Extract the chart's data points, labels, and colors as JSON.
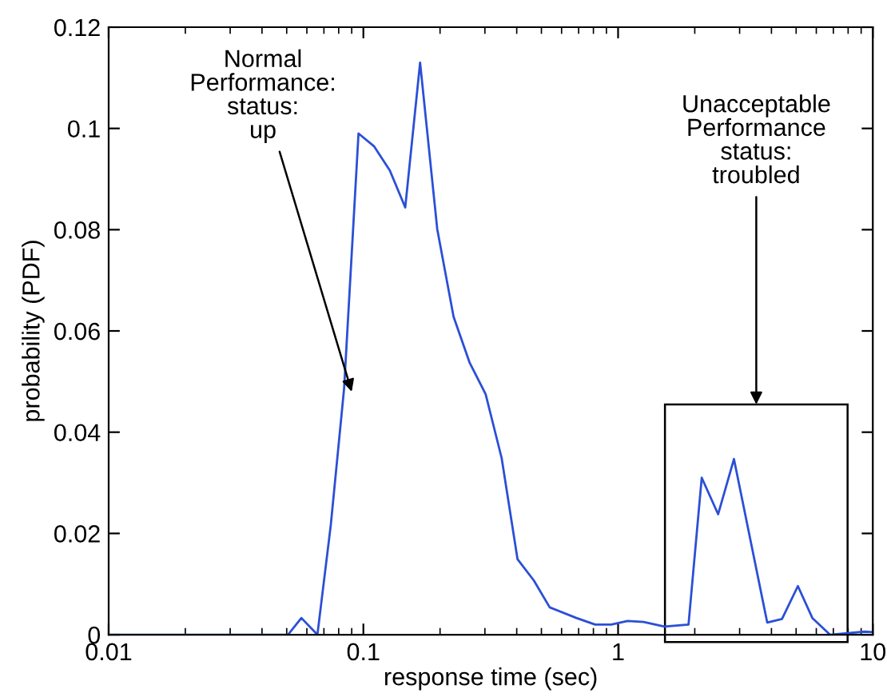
{
  "chart_data": {
    "type": "line",
    "xlabel": "response time (sec)",
    "ylabel": "probability (PDF)",
    "log": "x",
    "x": [
      0.01,
      0.0506,
      0.0571,
      0.066,
      0.0745,
      0.084,
      0.0957,
      0.11,
      0.127,
      0.146,
      0.167,
      0.195,
      0.226,
      0.261,
      0.302,
      0.349,
      0.403,
      0.467,
      0.539,
      0.686,
      0.813,
      0.94,
      1.09,
      1.26,
      1.52,
      1.89,
      2.13,
      2.47,
      2.85,
      3.85,
      4.4,
      5.08,
      5.79,
      6.79,
      9.3,
      10
    ],
    "series": [
      {
        "color": "#2b4fd6",
        "values": [
          0,
          0,
          0.0033,
          0,
          0.0217,
          0.0486,
          0.099,
          0.0965,
          0.0917,
          0.0844,
          0.113,
          0.0801,
          0.0628,
          0.0538,
          0.0475,
          0.0349,
          0.0149,
          0.0107,
          0.0054,
          0.0033,
          0.002,
          0.002,
          0.0027,
          0.0025,
          0.0016,
          0.002,
          0.031,
          0.0238,
          0.0347,
          0.0024,
          0.0031,
          0.0096,
          0.0033,
          0,
          0.0006,
          0.0005
        ]
      }
    ],
    "xlim": [
      0.01,
      10
    ],
    "xticks": [
      0.01,
      0.1,
      1,
      10
    ],
    "ylim": [
      0,
      0.12
    ],
    "yticks": [
      0,
      0.02,
      0.04,
      0.06,
      0.08,
      0.1,
      0.12
    ],
    "marker": "none",
    "line_style": "solid",
    "annotations": [
      {
        "text": "Normal\nPerformance:\nstatus:\nup",
        "x": 0.09,
        "y": 0.048
      },
      "Unacceptable\nPerformance\nstatus:\ntroubled"
    ]
  }
}
